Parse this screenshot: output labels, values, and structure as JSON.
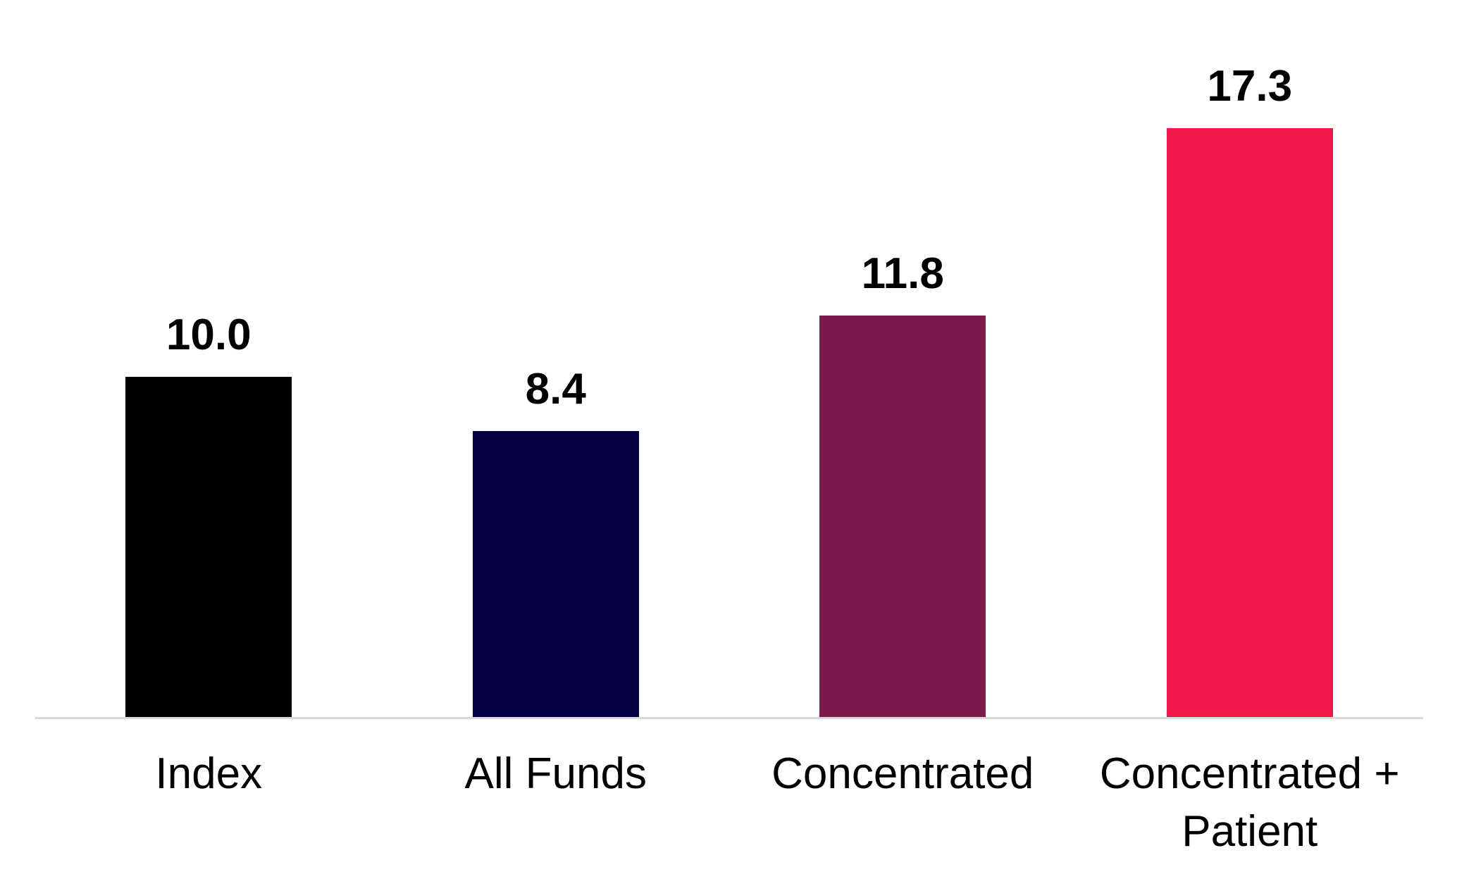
{
  "chart_data": {
    "type": "bar",
    "title": "",
    "xlabel": "",
    "ylabel": "",
    "categories": [
      "Index",
      "All Funds",
      "Concentrated",
      "Concentrated + Patient"
    ],
    "values": [
      10.0,
      8.4,
      11.8,
      17.3
    ],
    "value_labels": [
      "10.0",
      "8.4",
      "11.8",
      "17.3"
    ],
    "bar_colors": [
      "#000000",
      "#050041",
      "#7B1B4C",
      "#EF174C"
    ],
    "ylim": [
      0,
      20
    ],
    "grid": false,
    "legend_position": "none",
    "axis_line_color": "#D9D9D9",
    "background_color": "#FFFFFF",
    "value_label_color": "#000000",
    "category_label_color": "#000000"
  }
}
